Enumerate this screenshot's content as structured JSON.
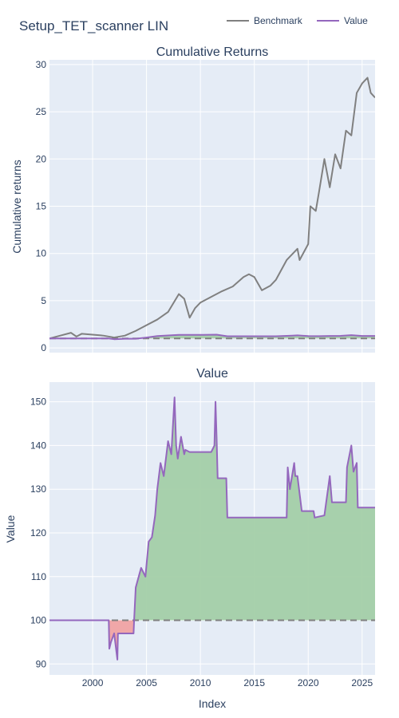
{
  "figure": {
    "title": "Setup_TET_scanner LIN",
    "xlabel": "Index"
  },
  "legend": {
    "position": "top-right",
    "items": [
      {
        "name": "Benchmark",
        "color": "#808080"
      },
      {
        "name": "Value",
        "color": "#9467bd"
      }
    ]
  },
  "colors": {
    "plot_bg": "#e5ecf6",
    "grid": "#ffffff",
    "benchmark": "#808080",
    "value": "#9467bd",
    "gain_fill": "#a3cfa8",
    "loss_fill": "#f0a3a3",
    "baseline": "#808080"
  },
  "chart_data": [
    {
      "type": "line",
      "title": "Cumulative Returns",
      "xlabel": "",
      "ylabel": "Cumulative returns",
      "xlim": [
        1996,
        2026.2
      ],
      "ylim": [
        -0.5,
        30.5
      ],
      "xticks": [
        2000,
        2005,
        2010,
        2015,
        2020,
        2025
      ],
      "yticks": [
        0,
        5,
        10,
        15,
        20,
        25,
        30
      ],
      "baseline": 1,
      "series": [
        {
          "name": "Benchmark",
          "x": [
            1996.0,
            1997.0,
            1998.0,
            1998.5,
            1999.0,
            2000.0,
            2001.0,
            2002.0,
            2003.0,
            2004.0,
            2005.0,
            2006.0,
            2007.0,
            2008.0,
            2008.5,
            2009.0,
            2009.5,
            2010.0,
            2011.0,
            2012.0,
            2013.0,
            2014.0,
            2014.5,
            2015.0,
            2015.7,
            2016.5,
            2017.0,
            2018.0,
            2019.0,
            2019.2,
            2020.0,
            2020.2,
            2020.7,
            2021.0,
            2021.5,
            2022.0,
            2022.5,
            2023.0,
            2023.5,
            2024.0,
            2024.5,
            2025.0,
            2025.5,
            2025.8,
            2026.2
          ],
          "y": [
            1.0,
            1.3,
            1.6,
            1.2,
            1.5,
            1.4,
            1.3,
            1.1,
            1.3,
            1.8,
            2.4,
            3.0,
            3.8,
            5.7,
            5.2,
            3.2,
            4.2,
            4.8,
            5.4,
            6.0,
            6.5,
            7.5,
            7.8,
            7.5,
            6.1,
            6.6,
            7.2,
            9.3,
            10.5,
            9.3,
            11.0,
            15.0,
            14.5,
            16.5,
            20.0,
            17.0,
            20.5,
            19.0,
            23.0,
            22.5,
            27.0,
            28.0,
            28.6,
            27.0,
            26.5
          ]
        },
        {
          "name": "Value",
          "x": [
            1996.0,
            2001.5,
            2002.0,
            2003.0,
            2004.0,
            2005.0,
            2006.0,
            2008.0,
            2010.0,
            2011.5,
            2012.5,
            2014.0,
            2017.0,
            2018.5,
            2019.0,
            2020.0,
            2021.0,
            2022.0,
            2023.0,
            2024.0,
            2025.0,
            2026.2
          ],
          "y": [
            1.0,
            1.0,
            0.92,
            0.97,
            0.97,
            1.1,
            1.25,
            1.38,
            1.38,
            1.4,
            1.23,
            1.23,
            1.23,
            1.3,
            1.33,
            1.25,
            1.24,
            1.26,
            1.27,
            1.35,
            1.26,
            1.26
          ]
        }
      ]
    },
    {
      "type": "area",
      "title": "Value",
      "xlabel": "Index",
      "ylabel": "Value",
      "xlim": [
        1996,
        2026.2
      ],
      "ylim": [
        87.5,
        154.5
      ],
      "xticks": [
        2000,
        2005,
        2010,
        2015,
        2020,
        2025
      ],
      "yticks": [
        90,
        100,
        110,
        120,
        130,
        140,
        150
      ],
      "baseline": 100,
      "series": [
        {
          "name": "Value",
          "x": [
            1996.0,
            2001.5,
            2001.55,
            2001.7,
            2002.0,
            2002.3,
            2002.35,
            2003.8,
            2003.85,
            2004.0,
            2004.5,
            2004.9,
            2005.2,
            2005.5,
            2005.8,
            2006.0,
            2006.3,
            2006.6,
            2007.0,
            2007.3,
            2007.6,
            2007.75,
            2007.9,
            2008.2,
            2008.5,
            2008.6,
            2009.0,
            2011.0,
            2011.3,
            2011.4,
            2011.5,
            2011.6,
            2012.4,
            2012.5,
            2018.0,
            2018.1,
            2018.3,
            2018.7,
            2018.8,
            2019.0,
            2019.4,
            2019.6,
            2020.5,
            2020.6,
            2021.5,
            2022.0,
            2022.2,
            2022.4,
            2023.5,
            2023.6,
            2024.0,
            2024.2,
            2024.5,
            2024.6,
            2026.2
          ],
          "y": [
            100,
            100,
            93.5,
            95.0,
            97.0,
            91.0,
            97.0,
            97.0,
            100.0,
            107.5,
            112.0,
            110.0,
            118.0,
            119.0,
            124.0,
            130.0,
            136.0,
            133.0,
            141.0,
            138.0,
            151.0,
            140.0,
            137.0,
            142.0,
            138.0,
            139.0,
            138.5,
            138.5,
            140.0,
            150.0,
            142.0,
            132.5,
            132.5,
            123.5,
            123.5,
            135.0,
            130.0,
            136.0,
            133.0,
            133.0,
            125.0,
            125.0,
            125.0,
            123.5,
            124.0,
            133.0,
            127.0,
            127.0,
            127.0,
            135.0,
            140.0,
            134.0,
            136.0,
            125.8,
            125.8
          ]
        }
      ]
    }
  ]
}
